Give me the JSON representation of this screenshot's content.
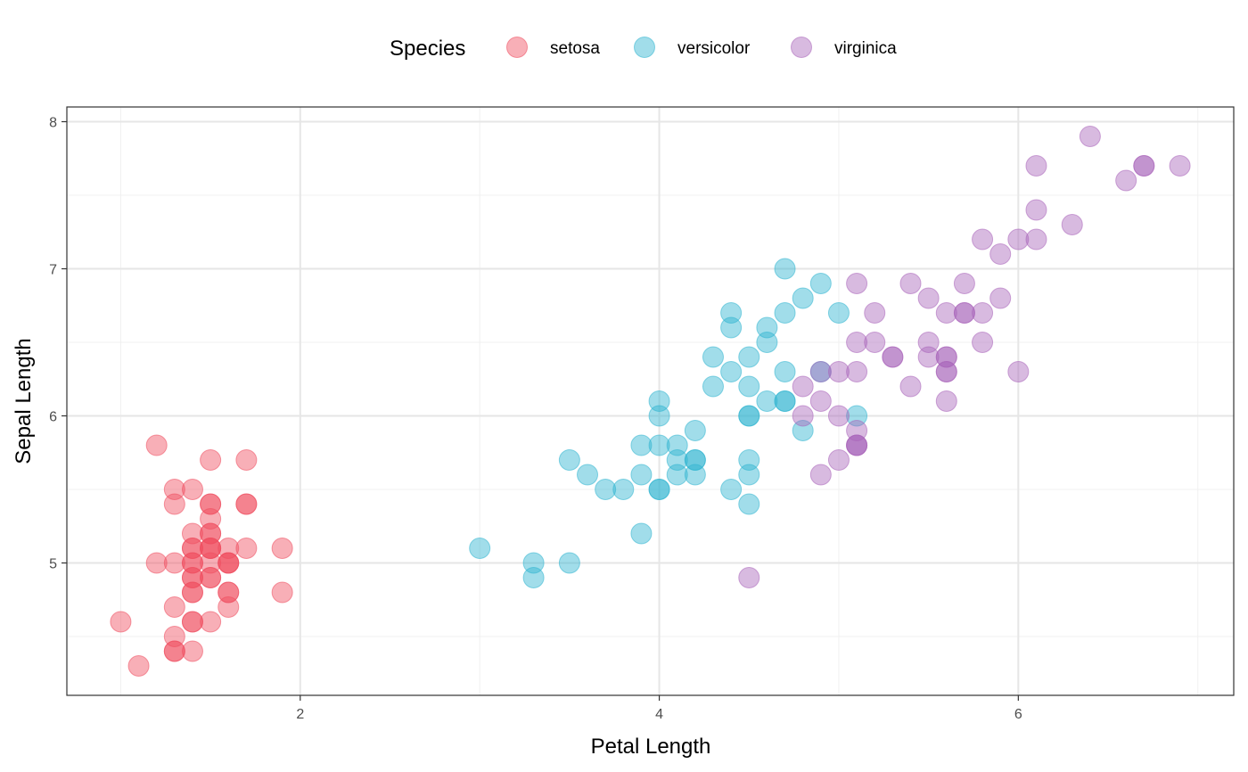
{
  "chart_data": {
    "type": "scatter",
    "title": "",
    "xlabel": "Petal Length",
    "ylabel": "Sepal Length",
    "xlim": [
      0.7,
      7.2
    ],
    "ylim": [
      4.1,
      8.1
    ],
    "x_major_ticks": [
      2,
      4,
      6
    ],
    "x_tick_labels": [
      "2",
      "4",
      "6"
    ],
    "x_minor_gridlines": [
      1,
      3,
      5,
      7
    ],
    "y_major_ticks": [
      5,
      6,
      7,
      8
    ],
    "y_tick_labels": [
      "5",
      "6",
      "7",
      "8"
    ],
    "y_minor_gridlines": [
      4.5,
      5.5,
      6.5,
      7.5
    ],
    "grid": true,
    "legend": {
      "title": "Species",
      "placement": "top"
    },
    "series": [
      {
        "name": "setosa",
        "color": "#ef4d5f",
        "points": [
          [
            1.4,
            5.1
          ],
          [
            1.4,
            4.9
          ],
          [
            1.3,
            4.7
          ],
          [
            1.5,
            4.6
          ],
          [
            1.4,
            5.0
          ],
          [
            1.7,
            5.4
          ],
          [
            1.4,
            4.6
          ],
          [
            1.5,
            5.0
          ],
          [
            1.4,
            4.4
          ],
          [
            1.5,
            4.9
          ],
          [
            1.5,
            5.4
          ],
          [
            1.6,
            4.8
          ],
          [
            1.4,
            4.8
          ],
          [
            1.1,
            4.3
          ],
          [
            1.2,
            5.8
          ],
          [
            1.5,
            5.7
          ],
          [
            1.3,
            5.4
          ],
          [
            1.4,
            5.1
          ],
          [
            1.7,
            5.7
          ],
          [
            1.5,
            5.1
          ],
          [
            1.7,
            5.4
          ],
          [
            1.5,
            5.1
          ],
          [
            1.0,
            4.6
          ],
          [
            1.7,
            5.1
          ],
          [
            1.9,
            4.8
          ],
          [
            1.6,
            5.0
          ],
          [
            1.6,
            5.0
          ],
          [
            1.5,
            5.2
          ],
          [
            1.4,
            5.2
          ],
          [
            1.6,
            4.7
          ],
          [
            1.6,
            4.8
          ],
          [
            1.5,
            5.4
          ],
          [
            1.5,
            5.2
          ],
          [
            1.4,
            5.5
          ],
          [
            1.5,
            4.9
          ],
          [
            1.2,
            5.0
          ],
          [
            1.3,
            5.5
          ],
          [
            1.4,
            4.9
          ],
          [
            1.3,
            4.4
          ],
          [
            1.5,
            5.1
          ],
          [
            1.3,
            5.0
          ],
          [
            1.3,
            4.5
          ],
          [
            1.3,
            4.4
          ],
          [
            1.6,
            5.0
          ],
          [
            1.9,
            5.1
          ],
          [
            1.4,
            4.8
          ],
          [
            1.6,
            5.1
          ],
          [
            1.4,
            4.6
          ],
          [
            1.5,
            5.3
          ],
          [
            1.4,
            5.0
          ]
        ]
      },
      {
        "name": "versicolor",
        "color": "#2fb4d0",
        "points": [
          [
            4.7,
            7.0
          ],
          [
            4.5,
            6.4
          ],
          [
            4.9,
            6.9
          ],
          [
            4.0,
            5.5
          ],
          [
            4.6,
            6.5
          ],
          [
            4.5,
            5.7
          ],
          [
            4.7,
            6.3
          ],
          [
            3.3,
            4.9
          ],
          [
            4.6,
            6.6
          ],
          [
            3.9,
            5.2
          ],
          [
            3.5,
            5.0
          ],
          [
            4.2,
            5.9
          ],
          [
            4.0,
            6.0
          ],
          [
            4.7,
            6.1
          ],
          [
            3.6,
            5.6
          ],
          [
            4.4,
            6.7
          ],
          [
            4.5,
            5.6
          ],
          [
            4.1,
            5.8
          ],
          [
            4.5,
            6.2
          ],
          [
            3.9,
            5.6
          ],
          [
            4.8,
            5.9
          ],
          [
            4.0,
            6.1
          ],
          [
            4.9,
            6.3
          ],
          [
            4.7,
            6.1
          ],
          [
            4.3,
            6.4
          ],
          [
            4.4,
            6.6
          ],
          [
            4.8,
            6.8
          ],
          [
            5.0,
            6.7
          ],
          [
            4.5,
            6.0
          ],
          [
            3.5,
            5.7
          ],
          [
            3.8,
            5.5
          ],
          [
            3.7,
            5.5
          ],
          [
            3.9,
            5.8
          ],
          [
            5.1,
            6.0
          ],
          [
            4.5,
            5.4
          ],
          [
            4.5,
            6.0
          ],
          [
            4.7,
            6.7
          ],
          [
            4.4,
            6.3
          ],
          [
            4.1,
            5.6
          ],
          [
            4.0,
            5.5
          ],
          [
            4.4,
            5.5
          ],
          [
            4.6,
            6.1
          ],
          [
            4.0,
            5.8
          ],
          [
            3.3,
            5.0
          ],
          [
            4.2,
            5.6
          ],
          [
            4.2,
            5.7
          ],
          [
            4.2,
            5.7
          ],
          [
            4.3,
            6.2
          ],
          [
            3.0,
            5.1
          ],
          [
            4.1,
            5.7
          ]
        ]
      },
      {
        "name": "virginica",
        "color": "#a965ba",
        "points": [
          [
            6.0,
            6.3
          ],
          [
            5.1,
            5.8
          ],
          [
            5.9,
            7.1
          ],
          [
            5.6,
            6.3
          ],
          [
            5.8,
            6.5
          ],
          [
            6.6,
            7.6
          ],
          [
            4.5,
            4.9
          ],
          [
            6.3,
            7.3
          ],
          [
            5.8,
            6.7
          ],
          [
            6.1,
            7.2
          ],
          [
            5.1,
            6.5
          ],
          [
            5.3,
            6.4
          ],
          [
            5.5,
            6.8
          ],
          [
            5.0,
            5.7
          ],
          [
            5.1,
            5.8
          ],
          [
            5.3,
            6.4
          ],
          [
            5.5,
            6.5
          ],
          [
            6.7,
            7.7
          ],
          [
            6.9,
            7.7
          ],
          [
            5.0,
            6.0
          ],
          [
            5.7,
            6.9
          ],
          [
            4.9,
            5.6
          ],
          [
            6.7,
            7.7
          ],
          [
            4.9,
            6.3
          ],
          [
            5.7,
            6.7
          ],
          [
            6.0,
            7.2
          ],
          [
            4.8,
            6.2
          ],
          [
            4.9,
            6.1
          ],
          [
            5.6,
            6.4
          ],
          [
            5.8,
            7.2
          ],
          [
            6.1,
            7.4
          ],
          [
            6.4,
            7.9
          ],
          [
            5.6,
            6.4
          ],
          [
            5.1,
            6.3
          ],
          [
            5.6,
            6.1
          ],
          [
            6.1,
            7.7
          ],
          [
            5.6,
            6.3
          ],
          [
            5.5,
            6.4
          ],
          [
            4.8,
            6.0
          ],
          [
            5.4,
            6.9
          ],
          [
            5.6,
            6.7
          ],
          [
            5.1,
            6.9
          ],
          [
            5.1,
            5.8
          ],
          [
            5.9,
            6.8
          ],
          [
            5.7,
            6.7
          ],
          [
            5.2,
            6.7
          ],
          [
            5.0,
            6.3
          ],
          [
            5.2,
            6.5
          ],
          [
            5.4,
            6.2
          ],
          [
            5.1,
            5.9
          ]
        ]
      }
    ]
  }
}
